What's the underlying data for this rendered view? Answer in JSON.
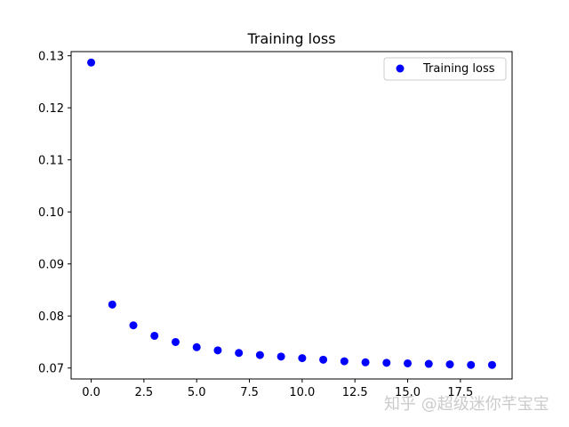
{
  "chart_data": {
    "type": "scatter",
    "title": "Training loss",
    "xlabel": "",
    "ylabel": "",
    "xlim": [
      -0.95,
      19.95
    ],
    "ylim": [
      0.0679,
      0.1308
    ],
    "xticks": [
      0.0,
      2.5,
      5.0,
      7.5,
      10.0,
      12.5,
      15.0,
      17.5
    ],
    "xtick_labels": [
      "0.0",
      "2.5",
      "5.0",
      "7.5",
      "10.0",
      "12.5",
      "15.0",
      "17.5"
    ],
    "yticks": [
      0.07,
      0.08,
      0.09,
      0.1,
      0.11,
      0.12,
      0.13
    ],
    "ytick_labels": [
      "0.07",
      "0.08",
      "0.09",
      "0.10",
      "0.11",
      "0.12",
      "0.13"
    ],
    "grid": false,
    "legend": "top-right",
    "series": [
      {
        "name": "Training loss",
        "color": "#0000ff",
        "marker": "circle",
        "x": [
          0,
          1,
          2,
          3,
          4,
          5,
          6,
          7,
          8,
          9,
          10,
          11,
          12,
          13,
          14,
          15,
          16,
          17,
          18,
          19
        ],
        "y": [
          0.1287,
          0.0822,
          0.0782,
          0.0762,
          0.075,
          0.074,
          0.0734,
          0.0729,
          0.0725,
          0.0722,
          0.0719,
          0.0716,
          0.0713,
          0.0711,
          0.071,
          0.0709,
          0.0708,
          0.0707,
          0.0706,
          0.0706
        ]
      }
    ]
  },
  "watermark": "知乎 @超级迷你芊宝宝"
}
